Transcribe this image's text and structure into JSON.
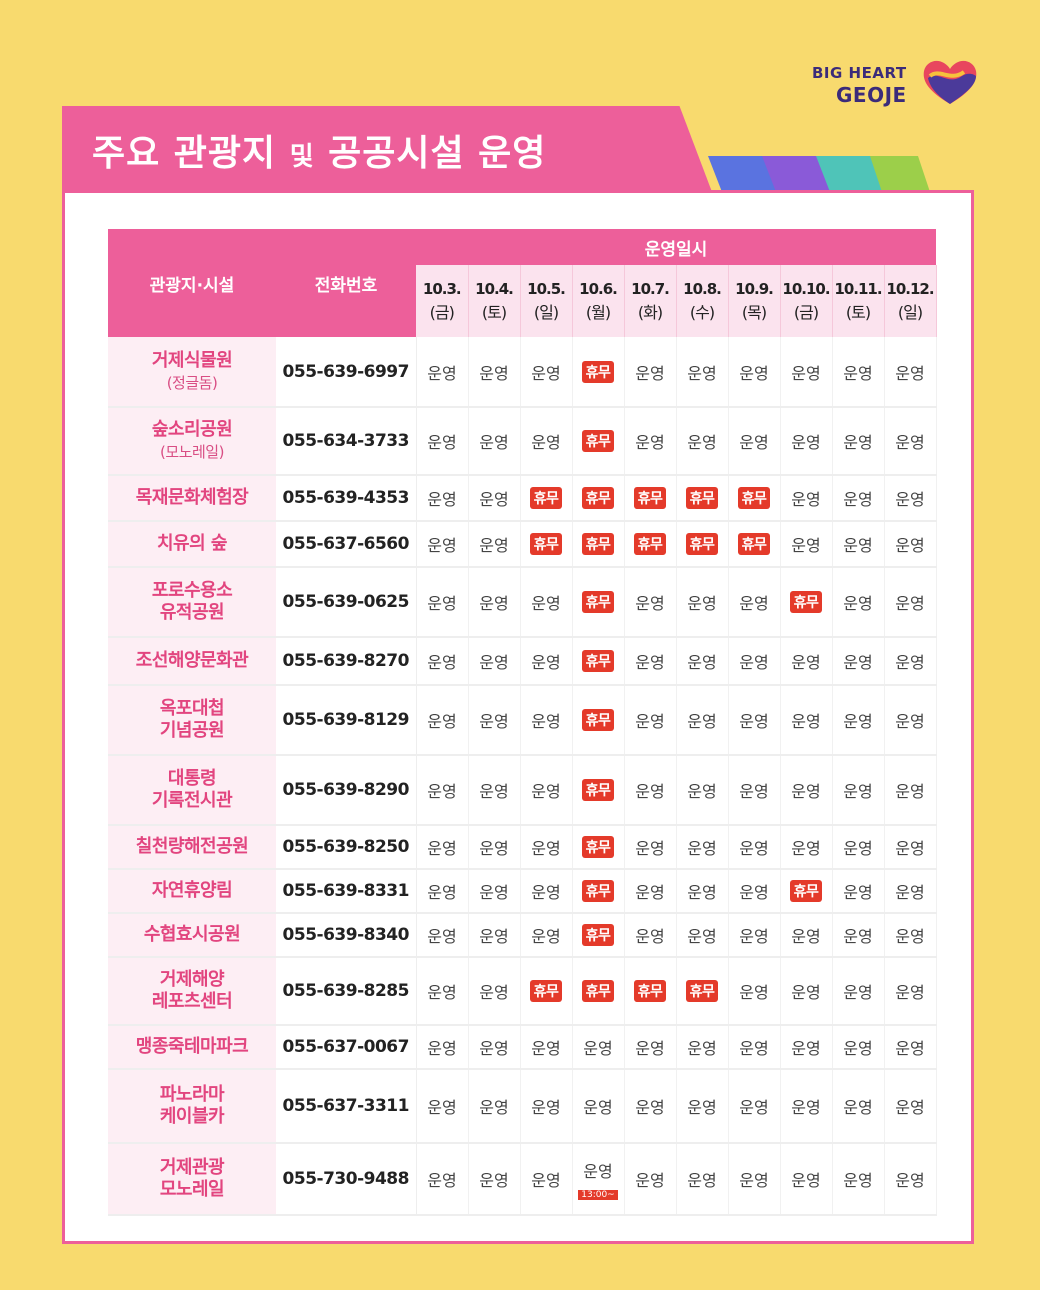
{
  "logo": {
    "line1": "BIG HEART",
    "line2": "GEOJE"
  },
  "title": {
    "main": "주요 관광지",
    "small": "및",
    "rest": "공공시설 운영"
  },
  "table": {
    "col_name": "관광지·시설",
    "col_phone": "전화번호",
    "col_schedule": "운영일시",
    "dates": [
      {
        "date": "10.3.",
        "day": "(금)"
      },
      {
        "date": "10.4.",
        "day": "(토)"
      },
      {
        "date": "10.5.",
        "day": "(일)"
      },
      {
        "date": "10.6.",
        "day": "(월)"
      },
      {
        "date": "10.7.",
        "day": "(화)"
      },
      {
        "date": "10.8.",
        "day": "(수)"
      },
      {
        "date": "10.9.",
        "day": "(목)"
      },
      {
        "date": "10.10.",
        "day": "(금)"
      },
      {
        "date": "10.11.",
        "day": "(토)"
      },
      {
        "date": "10.12.",
        "day": "(일)"
      }
    ],
    "rows": [
      {
        "name": "거제식물원",
        "sub": "(정글돔)",
        "phone": "055-639-6997",
        "status": [
          "운영",
          "운영",
          "운영",
          "휴무",
          "운영",
          "운영",
          "운영",
          "운영",
          "운영",
          "운영"
        ]
      },
      {
        "name": "숲소리공원",
        "sub": "(모노레일)",
        "phone": "055-634-3733",
        "status": [
          "운영",
          "운영",
          "운영",
          "휴무",
          "운영",
          "운영",
          "운영",
          "운영",
          "운영",
          "운영"
        ]
      },
      {
        "name": "목재문화체험장",
        "sub": "",
        "phone": "055-639-4353",
        "status": [
          "운영",
          "운영",
          "휴무",
          "휴무",
          "휴무",
          "휴무",
          "휴무",
          "운영",
          "운영",
          "운영"
        ]
      },
      {
        "name": "치유의 숲",
        "sub": "",
        "phone": "055-637-6560",
        "status": [
          "운영",
          "운영",
          "휴무",
          "휴무",
          "휴무",
          "휴무",
          "휴무",
          "운영",
          "운영",
          "운영"
        ]
      },
      {
        "name": "포로수용소",
        "sub": "유적공원",
        "phone": "055-639-0625",
        "status": [
          "운영",
          "운영",
          "운영",
          "휴무",
          "운영",
          "운영",
          "운영",
          "휴무",
          "운영",
          "운영"
        ]
      },
      {
        "name": "조선해양문화관",
        "sub": "",
        "phone": "055-639-8270",
        "status": [
          "운영",
          "운영",
          "운영",
          "휴무",
          "운영",
          "운영",
          "운영",
          "운영",
          "운영",
          "운영"
        ]
      },
      {
        "name": "옥포대첩",
        "sub": "기념공원",
        "phone": "055-639-8129",
        "status": [
          "운영",
          "운영",
          "운영",
          "휴무",
          "운영",
          "운영",
          "운영",
          "운영",
          "운영",
          "운영"
        ]
      },
      {
        "name": "대통령",
        "sub": "기록전시관",
        "phone": "055-639-8290",
        "status": [
          "운영",
          "운영",
          "운영",
          "휴무",
          "운영",
          "운영",
          "운영",
          "운영",
          "운영",
          "운영"
        ]
      },
      {
        "name": "칠천량해전공원",
        "sub": "",
        "phone": "055-639-8250",
        "status": [
          "운영",
          "운영",
          "운영",
          "휴무",
          "운영",
          "운영",
          "운영",
          "운영",
          "운영",
          "운영"
        ]
      },
      {
        "name": "자연휴양림",
        "sub": "",
        "phone": "055-639-8331",
        "status": [
          "운영",
          "운영",
          "운영",
          "휴무",
          "운영",
          "운영",
          "운영",
          "휴무",
          "운영",
          "운영"
        ]
      },
      {
        "name": "수협효시공원",
        "sub": "",
        "phone": "055-639-8340",
        "status": [
          "운영",
          "운영",
          "운영",
          "휴무",
          "운영",
          "운영",
          "운영",
          "운영",
          "운영",
          "운영"
        ]
      },
      {
        "name": "거제해양",
        "sub": "레포츠센터",
        "phone": "055-639-8285",
        "status": [
          "운영",
          "운영",
          "휴무",
          "휴무",
          "휴무",
          "휴무",
          "운영",
          "운영",
          "운영",
          "운영"
        ]
      },
      {
        "name": "맹종죽테마파크",
        "sub": "",
        "phone": "055-637-0067",
        "status": [
          "운영",
          "운영",
          "운영",
          "운영",
          "운영",
          "운영",
          "운영",
          "운영",
          "운영",
          "운영"
        ]
      },
      {
        "name": "파노라마",
        "sub": "케이블카",
        "phone": "055-637-3311",
        "status": [
          "운영",
          "운영",
          "운영",
          "운영",
          "운영",
          "운영",
          "운영",
          "운영",
          "운영",
          "운영"
        ]
      },
      {
        "name": "거제관광",
        "sub": "모노레일",
        "phone": "055-730-9488",
        "status": [
          "운영",
          "운영",
          "운영",
          "운영",
          "운영",
          "운영",
          "운영",
          "운영",
          "운영",
          "운영"
        ],
        "note_col": 3,
        "note": "13:00~"
      }
    ]
  }
}
